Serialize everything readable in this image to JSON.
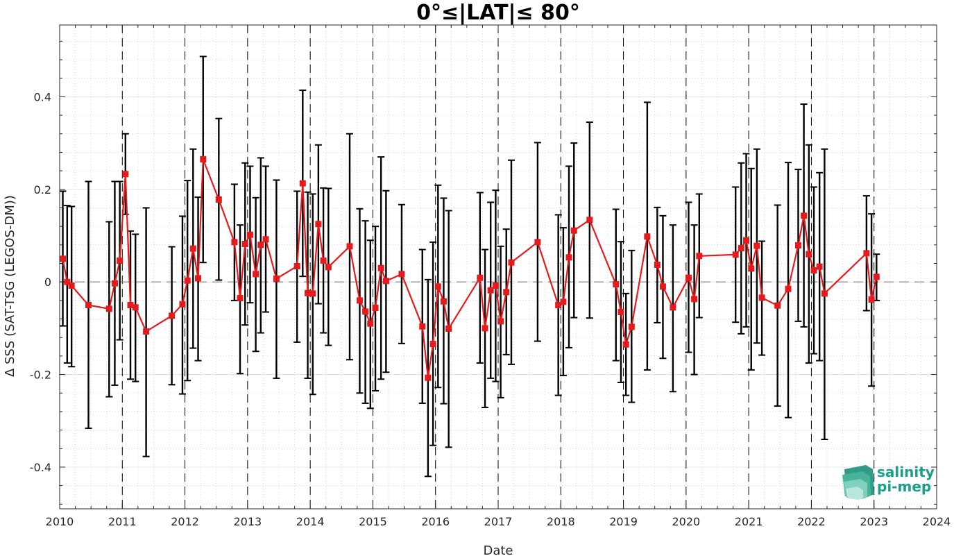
{
  "chart_data": {
    "type": "line",
    "title": "0°≤|LAT|≤ 80°",
    "xlabel": "Date",
    "ylabel": "Δ SSS (SAT-TSG (LEGOS-DM))",
    "xlim": [
      2010,
      2024
    ],
    "ylim": [
      -0.49,
      0.555
    ],
    "xticks": [
      "2010",
      "2011",
      "2012",
      "2013",
      "2014",
      "2015",
      "2016",
      "2017",
      "2018",
      "2019",
      "2020",
      "2021",
      "2022",
      "2023",
      "2024"
    ],
    "yticks": [
      -0.4,
      -0.2,
      0,
      0.2,
      0.4
    ],
    "ytick_labels": [
      "-0.4",
      "-0.2",
      "0",
      "0.2",
      "0.4"
    ],
    "grid": true,
    "year_lines": [
      2011,
      2012,
      2013,
      2014,
      2015,
      2016,
      2017,
      2018,
      2019,
      2020,
      2021,
      2022,
      2023
    ],
    "zero_line": 0,
    "series": [
      {
        "x": [
          2010.05,
          2010.12,
          2010.19,
          2010.46,
          2010.79,
          2010.88,
          2010.96,
          2011.05,
          2011.13,
          2011.21,
          2011.38,
          2011.79,
          2011.96,
          2012.04,
          2012.13,
          2012.21,
          2012.29,
          2012.54,
          2012.79,
          2012.88,
          2012.96,
          2013.04,
          2013.13,
          2013.21,
          2013.29,
          2013.46,
          2013.79,
          2013.88,
          2013.96,
          2014.04,
          2014.13,
          2014.21,
          2014.29,
          2014.63,
          2014.79,
          2014.88,
          2014.96,
          2015.04,
          2015.13,
          2015.21,
          2015.46,
          2015.79,
          2015.88,
          2015.96,
          2016.04,
          2016.13,
          2016.21,
          2016.71,
          2016.79,
          2016.88,
          2016.96,
          2017.04,
          2017.13,
          2017.21,
          2017.63,
          2017.96,
          2018.04,
          2018.13,
          2018.21,
          2018.46,
          2018.88,
          2018.96,
          2019.04,
          2019.13,
          2019.38,
          2019.54,
          2019.63,
          2019.79,
          2020.04,
          2020.13,
          2020.21,
          2020.79,
          2020.88,
          2020.96,
          2021.04,
          2021.13,
          2021.21,
          2021.46,
          2021.63,
          2021.79,
          2021.88,
          2021.96,
          2022.04,
          2022.13,
          2022.21,
          2022.88,
          2022.96,
          2023.04
        ],
        "y": [
          0.05,
          0.0,
          -0.008,
          -0.05,
          -0.058,
          -0.003,
          0.046,
          0.233,
          -0.05,
          -0.055,
          -0.107,
          -0.073,
          -0.048,
          0.003,
          0.072,
          0.008,
          0.265,
          0.178,
          0.086,
          -0.035,
          0.082,
          0.102,
          0.017,
          0.08,
          0.092,
          0.007,
          0.034,
          0.213,
          -0.024,
          -0.025,
          0.125,
          0.046,
          0.032,
          0.077,
          -0.04,
          -0.064,
          -0.09,
          -0.056,
          0.03,
          0.002,
          0.017,
          -0.096,
          -0.207,
          -0.134,
          -0.01,
          -0.042,
          -0.101,
          0.009,
          -0.1,
          -0.018,
          -0.008,
          -0.085,
          -0.022,
          0.042,
          0.086,
          -0.05,
          -0.043,
          0.053,
          0.111,
          0.134,
          -0.005,
          -0.065,
          -0.135,
          -0.097,
          0.098,
          0.037,
          -0.01,
          -0.055,
          0.009,
          -0.037,
          0.056,
          0.059,
          0.073,
          0.09,
          0.029,
          0.078,
          -0.034,
          -0.051,
          -0.015,
          0.079,
          0.143,
          0.06,
          0.025,
          0.033,
          -0.025,
          0.062,
          -0.038,
          0.011
        ],
        "y_upper": [
          0.196,
          0.165,
          0.163,
          0.217,
          0.13,
          0.217,
          0.217,
          0.32,
          0.11,
          0.103,
          0.16,
          0.076,
          0.142,
          0.219,
          0.287,
          0.183,
          0.487,
          0.353,
          0.211,
          0.123,
          0.257,
          0.25,
          0.182,
          0.268,
          0.25,
          0.22,
          0.196,
          0.414,
          0.194,
          0.19,
          0.296,
          0.203,
          0.202,
          0.32,
          0.158,
          0.132,
          0.09,
          0.12,
          0.27,
          0.197,
          0.167,
          0.07,
          0.005,
          0.086,
          0.209,
          0.181,
          0.154,
          0.193,
          0.07,
          0.172,
          0.198,
          0.077,
          0.114,
          0.263,
          0.301,
          0.145,
          0.117,
          0.25,
          0.3,
          0.345,
          0.157,
          0.087,
          -0.025,
          0.068,
          0.388,
          0.161,
          0.143,
          0.123,
          0.172,
          0.123,
          0.19,
          0.205,
          0.257,
          0.277,
          0.245,
          0.287,
          0.088,
          0.166,
          0.258,
          0.243,
          0.384,
          0.296,
          0.205,
          0.236,
          0.287,
          0.186,
          0.147,
          0.06
        ],
        "y_lower": [
          -0.095,
          -0.175,
          -0.183,
          -0.316,
          -0.248,
          -0.223,
          -0.125,
          0.146,
          -0.21,
          -0.215,
          -0.377,
          -0.222,
          -0.242,
          -0.213,
          -0.143,
          -0.17,
          0.042,
          0.004,
          -0.04,
          -0.198,
          -0.093,
          -0.045,
          -0.15,
          -0.11,
          -0.065,
          -0.208,
          -0.13,
          0.012,
          -0.208,
          -0.243,
          -0.047,
          -0.11,
          -0.137,
          -0.168,
          -0.24,
          -0.262,
          -0.273,
          -0.235,
          -0.21,
          -0.195,
          -0.133,
          -0.262,
          -0.42,
          -0.353,
          -0.228,
          -0.263,
          -0.357,
          -0.175,
          -0.271,
          -0.208,
          -0.215,
          -0.25,
          -0.157,
          -0.178,
          -0.128,
          -0.245,
          -0.202,
          -0.142,
          -0.077,
          -0.078,
          -0.17,
          -0.217,
          -0.245,
          -0.26,
          -0.19,
          -0.088,
          -0.165,
          -0.237,
          -0.152,
          -0.2,
          -0.077,
          -0.087,
          -0.112,
          -0.097,
          -0.19,
          -0.132,
          -0.158,
          -0.268,
          -0.293,
          -0.085,
          -0.097,
          -0.175,
          -0.155,
          -0.17,
          -0.34,
          -0.062,
          -0.225,
          -0.04
        ]
      }
    ],
    "colors": {
      "series": "#e41a1c",
      "errorbar": "#000000",
      "grid": "#b8b8b8",
      "zero_line": "#808080"
    }
  },
  "logo": {
    "line1": "salinity",
    "line2": "pi-mep"
  }
}
